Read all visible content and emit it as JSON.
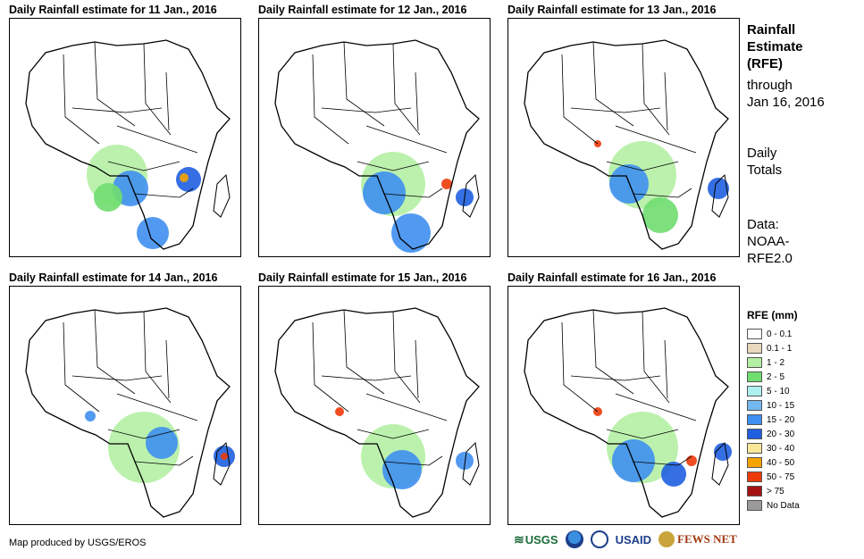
{
  "panels": [
    {
      "title": "Daily Rainfall estimate for 11 Jan., 2016"
    },
    {
      "title": "Daily Rainfall estimate for 12 Jan., 2016"
    },
    {
      "title": "Daily Rainfall estimate for 13 Jan., 2016"
    },
    {
      "title": "Daily Rainfall estimate for 14 Jan., 2016"
    },
    {
      "title": "Daily Rainfall estimate for 15 Jan., 2016"
    },
    {
      "title": "Daily Rainfall estimate for 16 Jan., 2016"
    }
  ],
  "side": {
    "title_lines": [
      "Rainfall",
      "Estimate",
      "(RFE)"
    ],
    "through_lines": [
      "through",
      "Jan 16, 2016"
    ],
    "totals_lines": [
      "Daily",
      "Totals"
    ],
    "data_lines": [
      "Data:",
      "NOAA-",
      "RFE2.0"
    ]
  },
  "legend": {
    "title": "RFE (mm)",
    "items": [
      {
        "label": "0 - 0.1",
        "color": "#ffffff"
      },
      {
        "label": "0.1 - 1",
        "color": "#e9d8bc"
      },
      {
        "label": "1 - 2",
        "color": "#b4f0a4"
      },
      {
        "label": "2 - 5",
        "color": "#6fdd6f"
      },
      {
        "label": "5 - 10",
        "color": "#aef0f0"
      },
      {
        "label": "10 - 15",
        "color": "#74b8f0"
      },
      {
        "label": "15 - 20",
        "color": "#3f8ff0"
      },
      {
        "label": "20 - 30",
        "color": "#1f5fe0"
      },
      {
        "label": "30 - 40",
        "color": "#fbe79a"
      },
      {
        "label": "40 - 50",
        "color": "#f7a400"
      },
      {
        "label": "50 - 75",
        "color": "#ee3a0a"
      },
      {
        "label": "> 75",
        "color": "#a41212"
      },
      {
        "label": "No Data",
        "color": "#9a9a9a"
      }
    ]
  },
  "credit": "Map produced by USGS/EROS",
  "logos": {
    "usgs": "USGS",
    "usaid": "USAID",
    "fews": "FEWS NET"
  }
}
